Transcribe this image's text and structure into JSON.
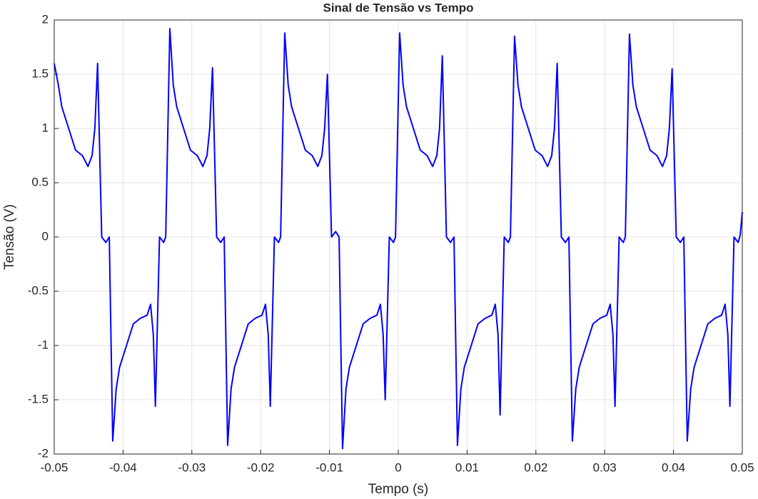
{
  "chart_data": {
    "type": "line",
    "title": "Sinal de Tensão vs Tempo",
    "xlabel": "Tempo (s)",
    "ylabel": "Tensão (V)",
    "xlim": [
      -0.05,
      0.05
    ],
    "ylim": [
      -2,
      2
    ],
    "xticks": [
      -0.05,
      -0.04,
      -0.03,
      -0.02,
      -0.01,
      0,
      0.01,
      0.02,
      0.03,
      0.04,
      0.05
    ],
    "yticks": [
      -2,
      -1.5,
      -1,
      -0.5,
      0,
      0.5,
      1,
      1.5,
      2
    ],
    "grid": true,
    "x": [
      -0.05,
      -0.0494,
      -0.0489,
      -0.0479,
      -0.0469,
      -0.0459,
      -0.0451,
      -0.0445,
      -0.0441,
      -0.0437,
      -0.0431,
      -0.0425,
      -0.042,
      -0.0415,
      -0.041,
      -0.0405,
      -0.0395,
      -0.0385,
      -0.0375,
      -0.0365,
      -0.036,
      -0.0356,
      -0.0353,
      -0.0347,
      -0.0341,
      -0.0338,
      -0.0332,
      -0.0327,
      -0.0322,
      -0.0312,
      -0.0302,
      -0.0292,
      -0.0284,
      -0.0278,
      -0.0274,
      -0.027,
      -0.0264,
      -0.0258,
      -0.0253,
      -0.0248,
      -0.0243,
      -0.0238,
      -0.0228,
      -0.0218,
      -0.0208,
      -0.0198,
      -0.0193,
      -0.0189,
      -0.0186,
      -0.018,
      -0.0174,
      -0.0171,
      -0.0165,
      -0.016,
      -0.0155,
      -0.0145,
      -0.0135,
      -0.0125,
      -0.0117,
      -0.0111,
      -0.0107,
      -0.0103,
      -0.0097,
      -0.0091,
      -0.0086,
      -0.0081,
      -0.0076,
      -0.0071,
      -0.0061,
      -0.0051,
      -0.0041,
      -0.0031,
      -0.0026,
      -0.0022,
      -0.0019,
      -0.0013,
      -0.0007,
      -0.0004,
      0.0002,
      0.0007,
      0.0012,
      0.0022,
      0.0032,
      0.0042,
      0.005,
      0.0056,
      0.006,
      0.0064,
      0.007,
      0.0076,
      0.0081,
      0.0086,
      0.0091,
      0.0096,
      0.0106,
      0.0116,
      0.0126,
      0.0136,
      0.0141,
      0.0145,
      0.0148,
      0.0154,
      0.016,
      0.0163,
      0.0169,
      0.0174,
      0.0179,
      0.0189,
      0.0199,
      0.0209,
      0.0217,
      0.0223,
      0.0227,
      0.0231,
      0.0237,
      0.0243,
      0.0248,
      0.0253,
      0.0258,
      0.0263,
      0.0273,
      0.0283,
      0.0293,
      0.0303,
      0.0308,
      0.0312,
      0.0315,
      0.0321,
      0.0327,
      0.033,
      0.0336,
      0.0341,
      0.0346,
      0.0356,
      0.0366,
      0.0376,
      0.0384,
      0.039,
      0.0394,
      0.0398,
      0.0404,
      0.041,
      0.0415,
      0.042,
      0.0425,
      0.043,
      0.044,
      0.045,
      0.046,
      0.047,
      0.0475,
      0.0479,
      0.0482,
      0.0488,
      0.0494,
      0.0497,
      0.05
    ],
    "series": [
      {
        "color": "#0000ff",
        "values": [
          1.6,
          1.4,
          1.2,
          1.0,
          0.8,
          0.75,
          0.65,
          0.75,
          1.0,
          1.6,
          0,
          -0.05,
          0,
          -1.88,
          -1.4,
          -1.2,
          -1.0,
          -0.8,
          -0.75,
          -0.72,
          -0.62,
          -0.9,
          -1.56,
          0,
          -0.05,
          0,
          1.92,
          1.4,
          1.2,
          1.0,
          0.8,
          0.75,
          0.65,
          0.75,
          1.0,
          1.56,
          0,
          -0.05,
          0,
          -1.92,
          -1.4,
          -1.2,
          -1.0,
          -0.8,
          -0.75,
          -0.72,
          -0.62,
          -0.9,
          -1.56,
          0,
          -0.05,
          0,
          1.88,
          1.4,
          1.2,
          1.0,
          0.8,
          0.75,
          0.65,
          0.75,
          1.0,
          1.5,
          0,
          0.05,
          0,
          -1.95,
          -1.4,
          -1.2,
          -1.0,
          -0.8,
          -0.75,
          -0.72,
          -0.62,
          -0.9,
          -1.5,
          0,
          -0.05,
          0,
          1.88,
          1.4,
          1.2,
          1.0,
          0.8,
          0.75,
          0.65,
          0.75,
          1.0,
          1.67,
          0,
          -0.05,
          0,
          -1.92,
          -1.4,
          -1.2,
          -1.0,
          -0.8,
          -0.75,
          -0.72,
          -0.62,
          -0.9,
          -1.64,
          0,
          -0.05,
          0,
          1.85,
          1.4,
          1.2,
          1.0,
          0.8,
          0.75,
          0.65,
          0.75,
          1.0,
          1.6,
          0,
          -0.05,
          0,
          -1.88,
          -1.4,
          -1.2,
          -1.0,
          -0.8,
          -0.75,
          -0.72,
          -0.62,
          -0.9,
          -1.56,
          0,
          -0.05,
          0,
          1.87,
          1.4,
          1.2,
          1.0,
          0.8,
          0.75,
          0.65,
          0.75,
          1.0,
          1.55,
          0,
          -0.05,
          0,
          -1.88,
          -1.4,
          -1.2,
          -1.0,
          -0.8,
          -0.75,
          -0.72,
          -0.62,
          -0.9,
          -1.56,
          0,
          -0.05,
          0.02,
          0.23
        ]
      }
    ]
  }
}
